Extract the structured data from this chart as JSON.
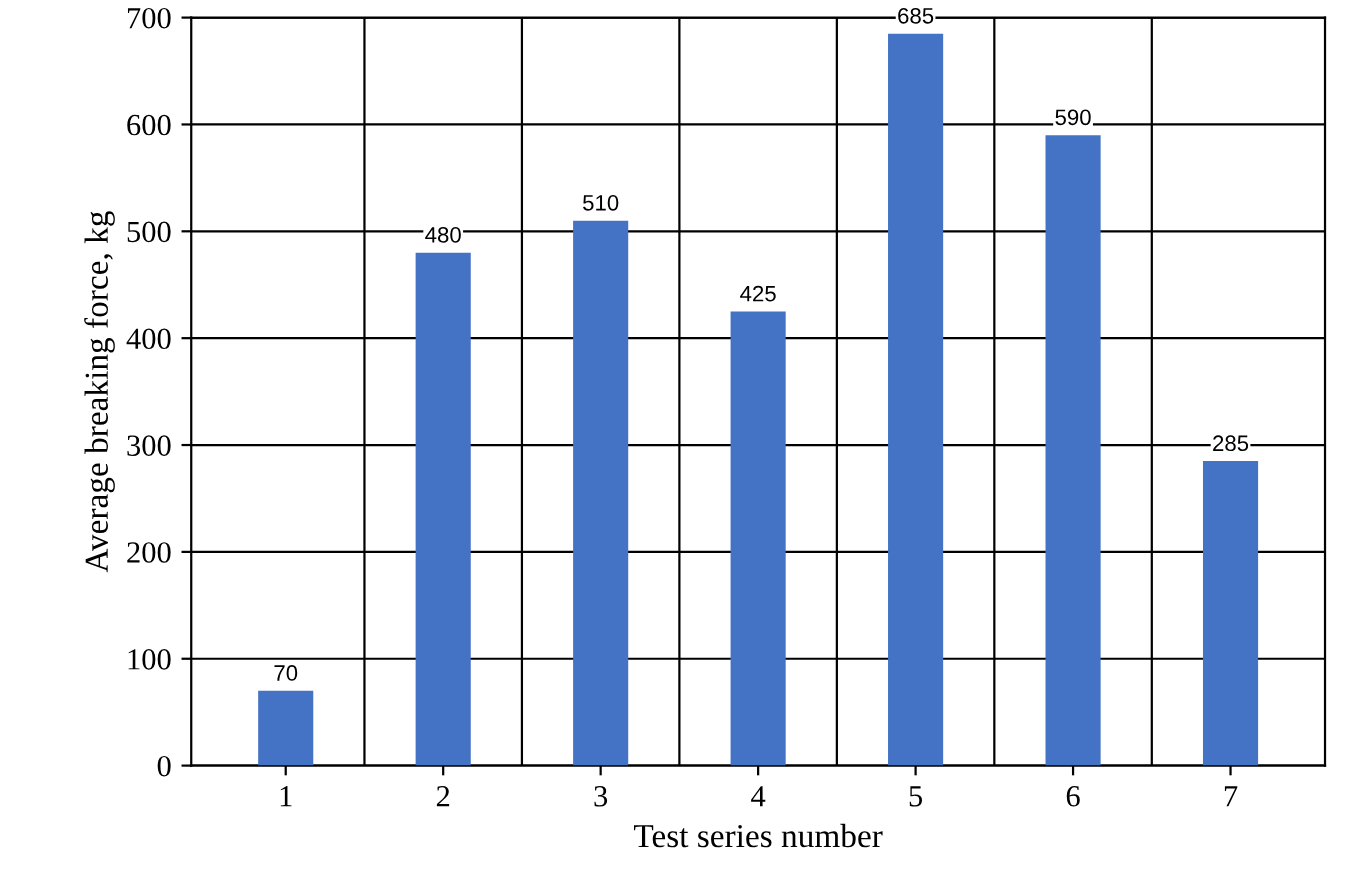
{
  "chart_data": {
    "type": "bar",
    "xlabel": "Test series number",
    "ylabel": "Average breaking force, kg",
    "categories": [
      "1",
      "2",
      "3",
      "4",
      "5",
      "6",
      "7"
    ],
    "values": [
      70,
      480,
      510,
      425,
      685,
      590,
      285
    ],
    "color": "#4472c4",
    "ylim": [
      0,
      700
    ],
    "yticks": [
      0,
      100,
      200,
      300,
      400,
      500,
      600,
      700
    ],
    "grid": true,
    "data_labels": true
  }
}
